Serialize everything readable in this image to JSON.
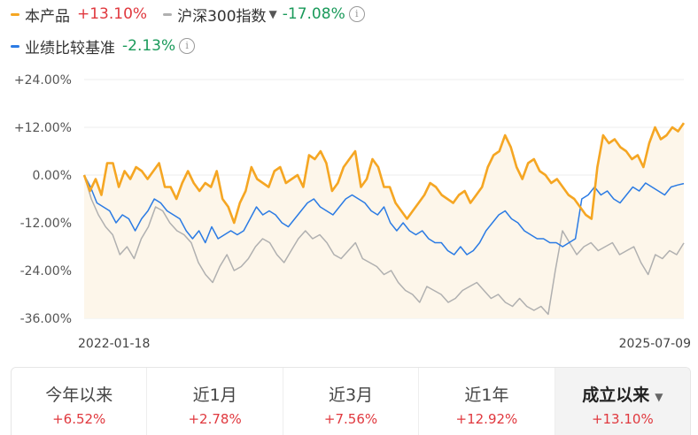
{
  "legend": {
    "product": {
      "name": "本产品",
      "value": "+13.10%",
      "color": "#f5a623",
      "value_color": "#e0383e"
    },
    "index": {
      "name": "沪深300指数",
      "value": "-17.08%",
      "color": "#b0b0b0",
      "value_color": "#1a9a5a"
    },
    "benchmark": {
      "name": "业绩比较基准",
      "value": "-2.13%",
      "color": "#2b7be4",
      "value_color": "#1a9a5a"
    }
  },
  "chart_data": {
    "type": "line",
    "x_start_label": "2022-01-18",
    "x_end_label": "2025-07-09",
    "y_ticks": [
      "+24.00%",
      "+12.00%",
      "0.00%",
      "-12.00%",
      "-24.00%",
      "-36.00%"
    ],
    "ylim": [
      -36,
      24
    ],
    "grid": true,
    "series": [
      {
        "name": "本产品",
        "color": "#f5a623",
        "area_fill": true,
        "values": [
          0,
          -4,
          -1,
          -5,
          3,
          3,
          -3,
          1,
          -1,
          2,
          1,
          -1,
          1,
          3,
          -3,
          -3,
          -6,
          -2,
          1,
          -2,
          -4,
          -2,
          -3,
          1,
          -6,
          -8,
          -12,
          -7,
          -4,
          2,
          -1,
          -2,
          -3,
          1,
          2,
          -2,
          -1,
          0,
          -3,
          5,
          4,
          6,
          3,
          -4,
          -2,
          2,
          4,
          6,
          -3,
          -1,
          4,
          2,
          -3,
          -3,
          -7,
          -9,
          -11,
          -9,
          -7,
          -5,
          -2,
          -3,
          -5,
          -6,
          -7,
          -5,
          -4,
          -7,
          -5,
          -3,
          2,
          5,
          6,
          10,
          7,
          2,
          -1,
          3,
          4,
          1,
          0,
          -2,
          -1,
          -3,
          -5,
          -6,
          -8,
          -10,
          -11,
          2,
          10,
          8,
          9,
          7,
          6,
          4,
          5,
          2,
          8,
          12,
          9,
          10,
          12,
          11,
          13.1
        ]
      },
      {
        "name": "业绩比较基准",
        "color": "#2b7be4",
        "area_fill": false,
        "values": [
          0,
          -3,
          -7,
          -8,
          -9,
          -12,
          -10,
          -11,
          -14,
          -11,
          -9,
          -6,
          -7,
          -9,
          -10,
          -11,
          -14,
          -16,
          -14,
          -17,
          -13,
          -16,
          -15,
          -14,
          -15,
          -14,
          -11,
          -8,
          -10,
          -9,
          -10,
          -12,
          -13,
          -11,
          -9,
          -7,
          -6,
          -8,
          -9,
          -10,
          -8,
          -6,
          -5,
          -6,
          -7,
          -9,
          -10,
          -8,
          -12,
          -14,
          -12,
          -14,
          -15,
          -14,
          -16,
          -17,
          -17,
          -19,
          -20,
          -18,
          -20,
          -19,
          -17,
          -14,
          -12,
          -10,
          -9,
          -11,
          -12,
          -14,
          -15,
          -16,
          -16,
          -17,
          -17,
          -18,
          -17,
          -16,
          -6,
          -5,
          -3,
          -5,
          -4,
          -6,
          -7,
          -5,
          -3,
          -4,
          -2,
          -3,
          -4,
          -5,
          -3,
          -2.5,
          -2.13
        ]
      },
      {
        "name": "沪深300指数",
        "color": "#b0b0b0",
        "area_fill": false,
        "values": [
          0,
          -6,
          -10,
          -13,
          -15,
          -20,
          -18,
          -21,
          -16,
          -13,
          -8,
          -9,
          -12,
          -14,
          -15,
          -17,
          -22,
          -25,
          -27,
          -23,
          -20,
          -24,
          -23,
          -21,
          -18,
          -16,
          -17,
          -20,
          -22,
          -19,
          -16,
          -14,
          -16,
          -15,
          -17,
          -20,
          -21,
          -19,
          -17,
          -21,
          -22,
          -23,
          -25,
          -24,
          -27,
          -29,
          -30,
          -32,
          -28,
          -29,
          -30,
          -32,
          -31,
          -29,
          -28,
          -27,
          -29,
          -31,
          -30,
          -32,
          -33,
          -31,
          -33,
          -34,
          -33,
          -35,
          -24,
          -14,
          -17,
          -20,
          -18,
          -17,
          -19,
          -18,
          -17,
          -20,
          -19,
          -18,
          -22,
          -25,
          -20,
          -21,
          -19,
          -20,
          -17.08
        ]
      }
    ]
  },
  "periods": [
    {
      "label": "今年以来",
      "value": "+6.52%",
      "active": false
    },
    {
      "label": "近1月",
      "value": "+2.78%",
      "active": false
    },
    {
      "label": "近3月",
      "value": "+7.56%",
      "active": false
    },
    {
      "label": "近1年",
      "value": "+12.92%",
      "active": false
    },
    {
      "label": "成立以来",
      "value": "+13.10%",
      "active": true
    }
  ]
}
